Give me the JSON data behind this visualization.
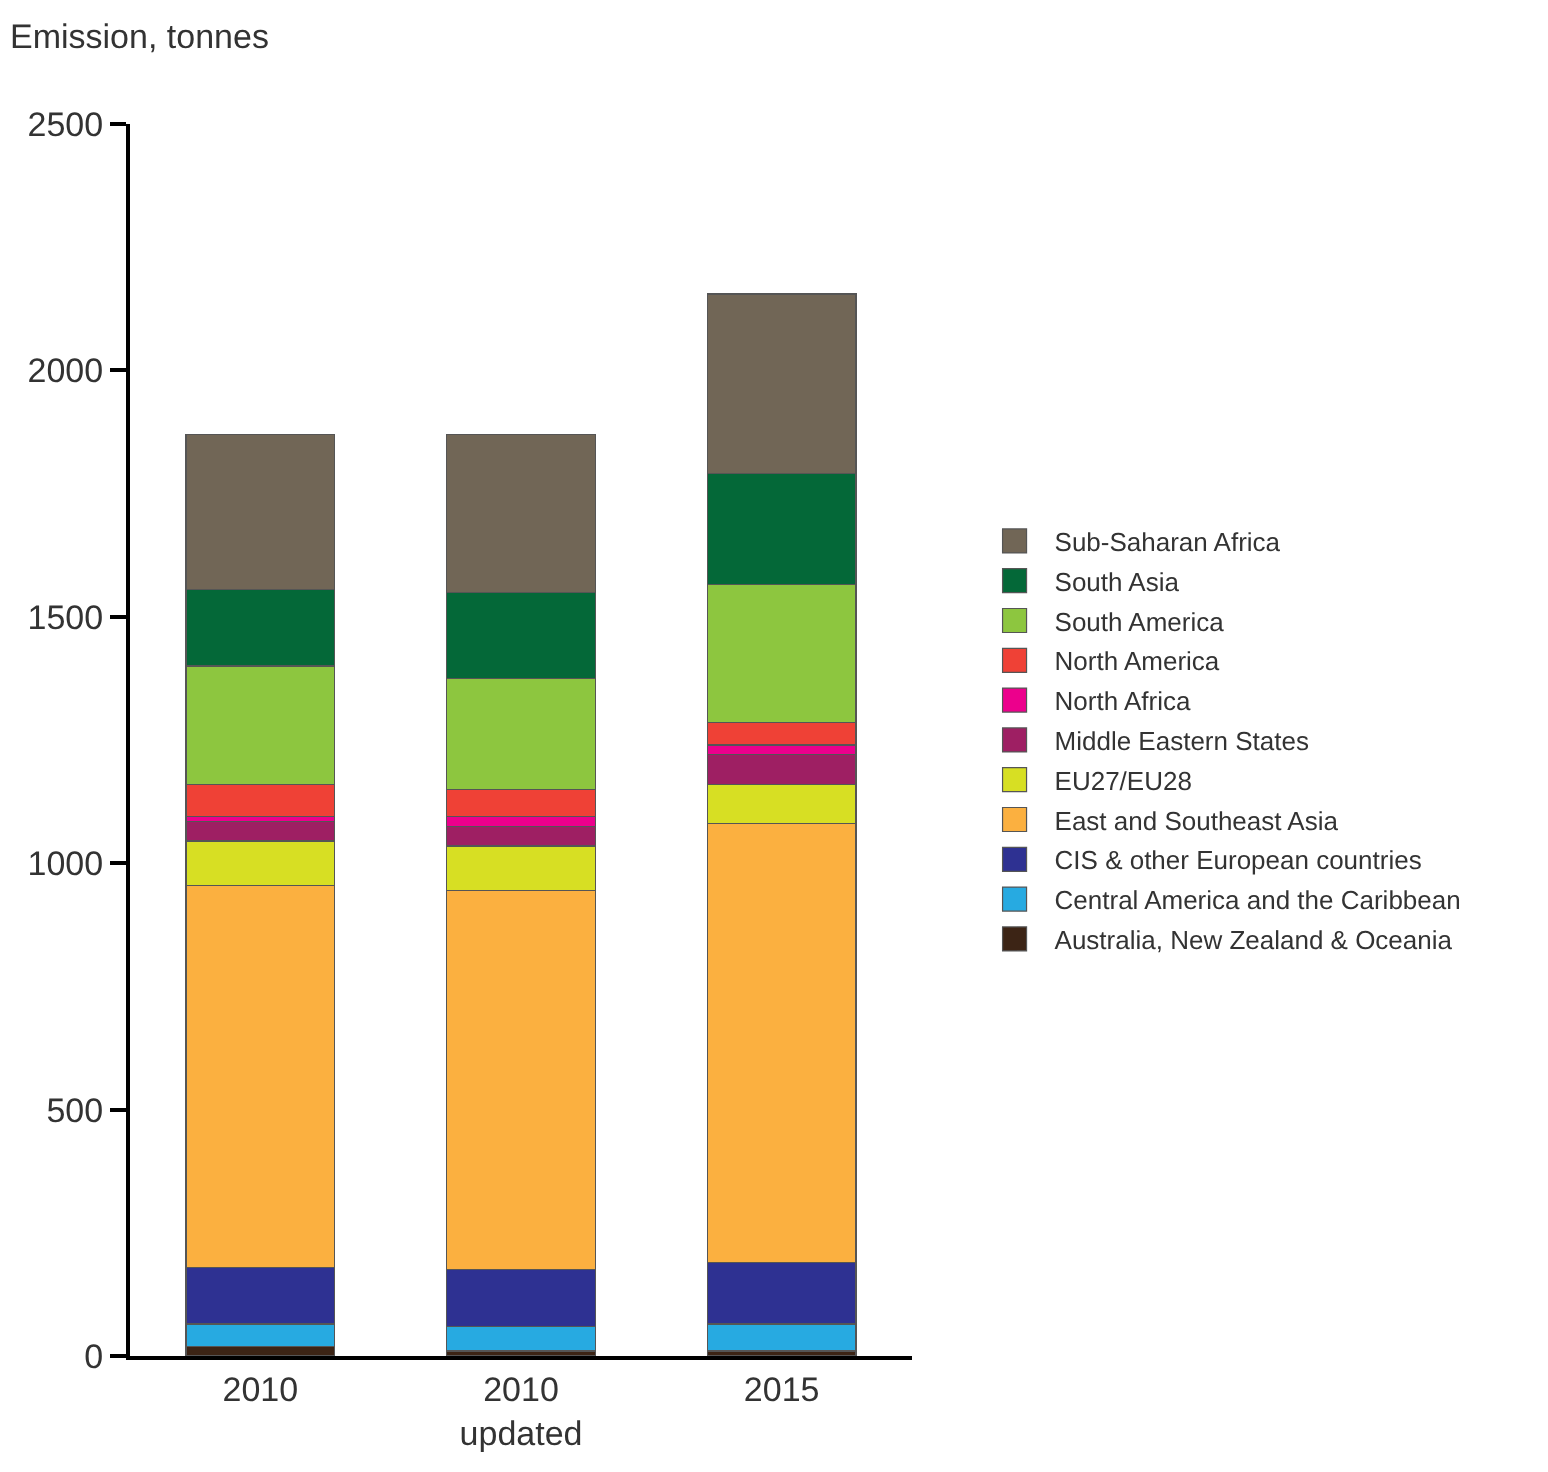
{
  "chart_data": {
    "type": "bar",
    "stacked": true,
    "ylabel": "Emission, tonnes",
    "categories": [
      "2010",
      "2010\nupdated",
      "2015"
    ],
    "ylim": [
      0,
      2500
    ],
    "yticks": [
      0,
      500,
      1000,
      1500,
      2000,
      2500
    ],
    "grid": false,
    "legend": "right",
    "series": [
      {
        "name": "Australia, New Zealand & Oceania",
        "color": "#3c2415",
        "values": [
          20,
          10,
          10
        ]
      },
      {
        "name": "Central America and the Caribbean",
        "color": "#27aae1",
        "values": [
          45,
          50,
          55
        ]
      },
      {
        "name": "CIS & other European countries",
        "color": "#2e3192",
        "values": [
          115,
          115,
          125
        ]
      },
      {
        "name": "East and Southeast Asia",
        "color": "#fbb040",
        "values": [
          775,
          770,
          890
        ]
      },
      {
        "name": "EU27/EU28",
        "color": "#d7df23",
        "values": [
          90,
          90,
          80
        ]
      },
      {
        "name": "Middle Eastern States",
        "color": "#9e1f63",
        "values": [
          40,
          40,
          60
        ]
      },
      {
        "name": "North Africa",
        "color": "#ec008c",
        "values": [
          10,
          20,
          20
        ]
      },
      {
        "name": "North America",
        "color": "#ef4136",
        "values": [
          65,
          55,
          45
        ]
      },
      {
        "name": "South America",
        "color": "#8dc63f",
        "values": [
          240,
          225,
          280
        ]
      },
      {
        "name": "South Asia",
        "color": "#046838",
        "values": [
          155,
          175,
          225
        ]
      },
      {
        "name": "Sub-Saharan Africa",
        "color": "#716656",
        "values": [
          315,
          320,
          365
        ]
      }
    ]
  }
}
